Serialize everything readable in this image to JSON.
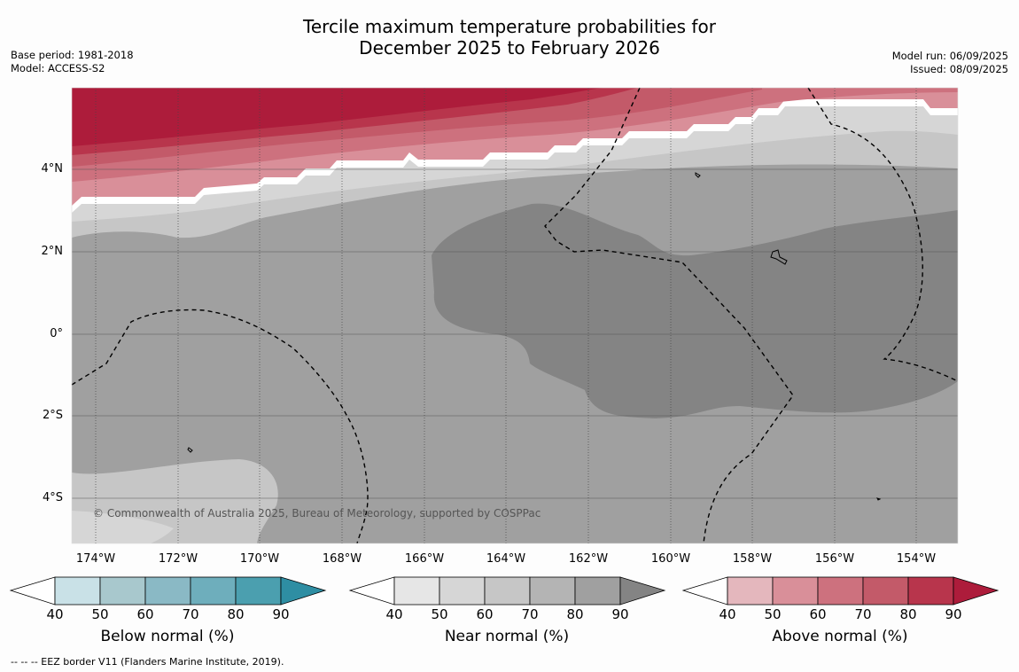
{
  "title_line1": "Tercile maximum temperature probabilities for",
  "title_line2": "December 2025 to February 2026",
  "meta_left": {
    "base_period": "Base period: 1981-2018",
    "model": "Model: ACCESS-S2"
  },
  "meta_right": {
    "model_run": "Model run: 06/09/2025",
    "issued": "Issued: 08/09/2025"
  },
  "copyright": "© Commonwealth of Australia 2025, Bureau of Meteorology, supported by COSPPac",
  "footer": "--  --  -- EEZ border V11 (Flanders Marine Institute, 2019).",
  "lat_labels": [
    "4°N",
    "2°N",
    "0°",
    "2°S",
    "4°S"
  ],
  "lon_labels": [
    "174°W",
    "172°W",
    "170°W",
    "168°W",
    "166°W",
    "164°W",
    "162°W",
    "160°W",
    "158°W",
    "156°W",
    "154°W"
  ],
  "colorbars": [
    {
      "label": "Below normal (%)",
      "ticks": [
        "40",
        "50",
        "60",
        "70",
        "80",
        "90"
      ],
      "colors": [
        "#ffffff",
        "#c9e1e7",
        "#a8c8cd",
        "#8ab9c5",
        "#6eaebc",
        "#4b9faf",
        "#2e8ea3"
      ]
    },
    {
      "label": "Near normal (%)",
      "ticks": [
        "40",
        "50",
        "60",
        "70",
        "80",
        "90"
      ],
      "colors": [
        "#ffffff",
        "#e6e6e6",
        "#d6d6d6",
        "#c6c6c6",
        "#b4b4b4",
        "#a0a0a0",
        "#848484"
      ]
    },
    {
      "label": "Above normal (%)",
      "ticks": [
        "40",
        "50",
        "60",
        "70",
        "80",
        "90"
      ],
      "colors": [
        "#ffffff",
        "#e4b7bd",
        "#d98f99",
        "#cd717e",
        "#c35a69",
        "#b8354c",
        "#ad1c3b"
      ]
    }
  ],
  "map_colors": {
    "near_90": "#848484",
    "near_80": "#a0a0a0",
    "near_70": "#c6c6c6",
    "near_60": "#d6d6d6",
    "above_50": "#d98f99",
    "above_60": "#cd717e",
    "above_70": "#c35a69",
    "above_80": "#b8354c",
    "above_90": "#ad1c3b"
  }
}
